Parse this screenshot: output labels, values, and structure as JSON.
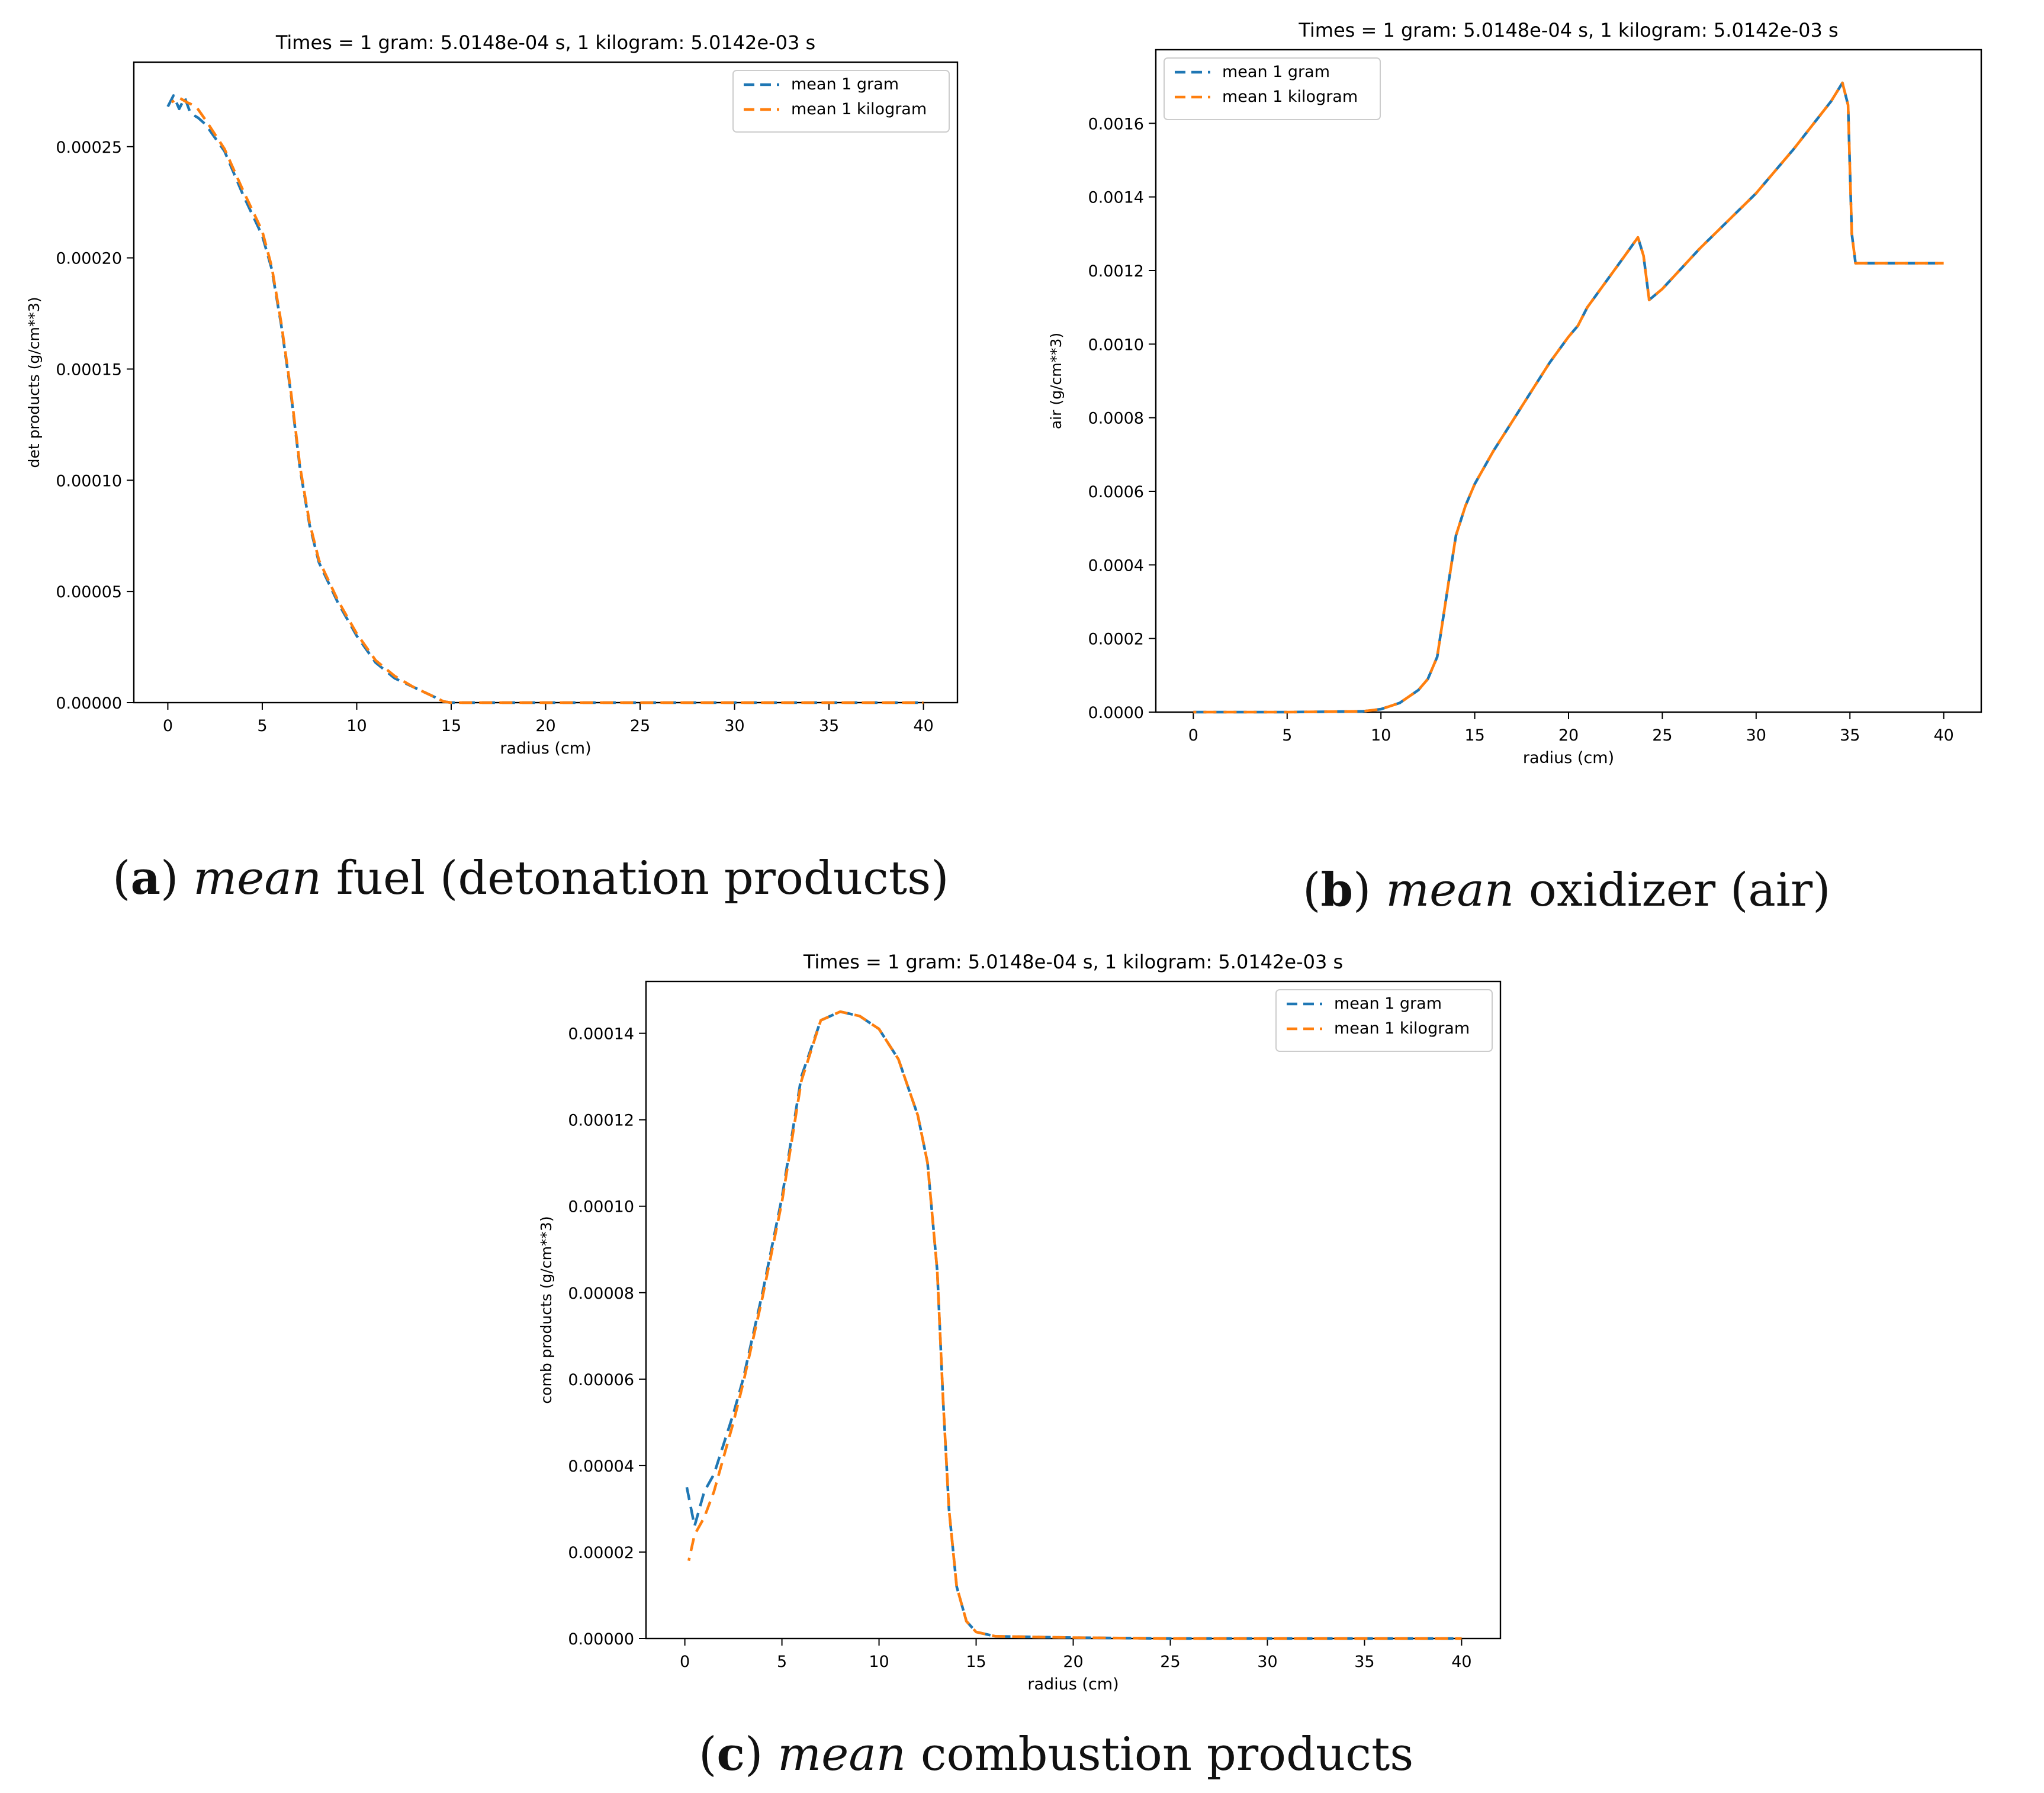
{
  "figure": {
    "captions": [
      {
        "letter": "a",
        "open": "(",
        "close": ")",
        "italic": "mean",
        "rest": " fuel (detonation products)"
      },
      {
        "letter": "b",
        "open": "(",
        "close": ")",
        "italic": "mean",
        "rest": " oxidizer (air)"
      },
      {
        "letter": "c",
        "open": "(",
        "close": ")",
        "italic": "mean",
        "rest": " combustion products"
      }
    ]
  },
  "colors": {
    "series_gram": "#1f77b4",
    "series_kilogram": "#ff7f0e",
    "axes": "#000000"
  },
  "chart_data": [
    {
      "type": "line",
      "title": "Times = 1 gram:   5.0148e-04 s,   1 kilogram:   5.0142e-03 s",
      "xlabel": "radius (cm)",
      "ylabel": "det products (g/cm**3)",
      "xlim": [
        -1.8,
        41.8
      ],
      "ylim": [
        0,
        0.000288
      ],
      "xticks": [
        0,
        5,
        10,
        15,
        20,
        25,
        30,
        35,
        40
      ],
      "xtick_labels": [
        "0",
        "5",
        "10",
        "15",
        "20",
        "25",
        "30",
        "35",
        "40"
      ],
      "yticks": [
        0,
        5e-05,
        0.0001,
        0.00015,
        0.0002,
        0.00025
      ],
      "ytick_labels": [
        "0.00000",
        "0.00005",
        "0.00010",
        "0.00015",
        "0.00020",
        "0.00025"
      ],
      "legend": "top-right",
      "grid": false,
      "series": [
        {
          "name": "mean 1 gram",
          "line": "dashed",
          "x": [
            0,
            0.3,
            0.6,
            0.9,
            1.2,
            1.6,
            2,
            3,
            4,
            5,
            5.5,
            6,
            6.5,
            7,
            7.5,
            8,
            9,
            10,
            11,
            12,
            13,
            14,
            14.6,
            15,
            20,
            25,
            30,
            35,
            40
          ],
          "y": [
            0.000268,
            0.000273,
            0.000267,
            0.000272,
            0.000265,
            0.000263,
            0.00026,
            0.000248,
            0.000228,
            0.00021,
            0.000195,
            0.00017,
            0.00014,
            0.000105,
            8e-05,
            6.3e-05,
            4.5e-05,
            3e-05,
            1.8e-05,
            1.1e-05,
            7e-06,
            3e-06,
            5e-07,
            0,
            0,
            0,
            0,
            0,
            0
          ]
        },
        {
          "name": "mean 1 kilogram",
          "line": "dashed",
          "x": [
            0.2,
            0.6,
            1,
            1.5,
            2,
            3,
            4,
            5,
            5.5,
            6,
            6.5,
            7,
            7.5,
            8,
            9,
            10,
            11,
            12,
            13,
            14,
            14.6,
            15,
            20,
            25,
            30,
            35,
            40
          ],
          "y": [
            0.00027,
            0.000272,
            0.00027,
            0.000268,
            0.000262,
            0.000249,
            0.00023,
            0.000212,
            0.000196,
            0.000171,
            0.000141,
            0.000106,
            8.1e-05,
            6.4e-05,
            4.6e-05,
            3.1e-05,
            1.9e-05,
            1.2e-05,
            7e-06,
            3e-06,
            5e-07,
            0,
            0,
            0,
            0,
            0,
            0
          ]
        }
      ]
    },
    {
      "type": "line",
      "title": "Times = 1 gram:   5.0148e-04 s,   1 kilogram:   5.0142e-03 s",
      "xlabel": "radius (cm)",
      "ylabel": "air (g/cm**3)",
      "xlim": [
        -2,
        42
      ],
      "ylim": [
        0,
        0.0018
      ],
      "xticks": [
        0,
        5,
        10,
        15,
        20,
        25,
        30,
        35,
        40
      ],
      "xtick_labels": [
        "0",
        "5",
        "10",
        "15",
        "20",
        "25",
        "30",
        "35",
        "40"
      ],
      "yticks": [
        0,
        0.0002,
        0.0004,
        0.0006,
        0.0008,
        0.001,
        0.0012,
        0.0014,
        0.0016
      ],
      "ytick_labels": [
        "0.0000",
        "0.0002",
        "0.0004",
        "0.0006",
        "0.0008",
        "0.0010",
        "0.0012",
        "0.0014",
        "0.0016"
      ],
      "legend": "top-left",
      "grid": false,
      "series": [
        {
          "name": "mean 1 gram",
          "line": "dashed",
          "x": [
            0,
            5,
            9,
            10,
            11,
            12,
            12.5,
            13,
            13.3,
            13.6,
            14,
            14.5,
            15,
            16,
            17,
            18,
            19,
            20,
            20.5,
            21,
            22,
            23,
            23.7,
            24,
            24.3,
            25,
            27,
            30,
            32,
            34,
            34.6,
            34.9,
            35.1,
            35.3,
            36,
            38,
            40
          ],
          "y": [
            0,
            0,
            2e-06,
            8e-06,
            2.5e-05,
            6e-05,
            9e-05,
            0.00015,
            0.00025,
            0.00035,
            0.00048,
            0.00056,
            0.00062,
            0.00071,
            0.00079,
            0.00087,
            0.00095,
            0.00102,
            0.00105,
            0.0011,
            0.00117,
            0.00124,
            0.00129,
            0.00124,
            0.00112,
            0.00115,
            0.00126,
            0.00141,
            0.00153,
            0.00166,
            0.00171,
            0.00165,
            0.0013,
            0.00122,
            0.00122,
            0.00122,
            0.00122
          ]
        },
        {
          "name": "mean 1 kilogram",
          "line": "dashed",
          "x": [
            0,
            5,
            9,
            10,
            11,
            12,
            12.5,
            13,
            13.3,
            13.6,
            14,
            14.5,
            15,
            16,
            17,
            18,
            19,
            20,
            20.5,
            21,
            22,
            23,
            23.7,
            24,
            24.3,
            25,
            27,
            30,
            32,
            34,
            34.6,
            34.9,
            35.1,
            35.3,
            36,
            38,
            40
          ],
          "y": [
            0,
            0,
            2e-06,
            8e-06,
            2.5e-05,
            6e-05,
            9e-05,
            0.00015,
            0.00025,
            0.00035,
            0.00048,
            0.00056,
            0.00062,
            0.00071,
            0.00079,
            0.00087,
            0.00095,
            0.00102,
            0.00105,
            0.0011,
            0.00117,
            0.00124,
            0.00129,
            0.00124,
            0.00112,
            0.00115,
            0.00126,
            0.00141,
            0.00153,
            0.00166,
            0.00171,
            0.00165,
            0.0013,
            0.00122,
            0.00122,
            0.00122,
            0.00122
          ]
        }
      ]
    },
    {
      "type": "line",
      "title": "Times = 1 gram:   5.0148e-04 s,   1 kilogram:   5.0142e-03 s",
      "xlabel": "radius (cm)",
      "ylabel": "comb products (g/cm**3)",
      "xlim": [
        -2,
        42
      ],
      "ylim": [
        0,
        0.000152
      ],
      "xticks": [
        0,
        5,
        10,
        15,
        20,
        25,
        30,
        35,
        40
      ],
      "xtick_labels": [
        "0",
        "5",
        "10",
        "15",
        "20",
        "25",
        "30",
        "35",
        "40"
      ],
      "yticks": [
        0,
        2e-05,
        4e-05,
        6e-05,
        8e-05,
        0.0001,
        0.00012,
        0.00014
      ],
      "ytick_labels": [
        "0.00000",
        "0.00002",
        "0.00004",
        "0.00006",
        "0.00008",
        "0.00010",
        "0.00012",
        "0.00014"
      ],
      "legend": "top-right",
      "grid": false,
      "series": [
        {
          "name": "mean 1 gram",
          "line": "dashed",
          "x": [
            0.1,
            0.5,
            1,
            1.5,
            2,
            2.5,
            3,
            4,
            5,
            6,
            7,
            8,
            9,
            10,
            11,
            12,
            12.5,
            13,
            13.3,
            13.6,
            14,
            14.5,
            15,
            16,
            20,
            25,
            30,
            35,
            40
          ],
          "y": [
            3.5e-05,
            2.6e-05,
            3.4e-05,
            3.8e-05,
            4.5e-05,
            5.2e-05,
            6e-05,
            8e-05,
            0.000102,
            0.00013,
            0.000143,
            0.000145,
            0.000144,
            0.000141,
            0.000134,
            0.000121,
            0.00011,
            8.5e-05,
            5.5e-05,
            3e-05,
            1.2e-05,
            4e-06,
            1.5e-06,
            5e-07,
            2e-07,
            0,
            0,
            0,
            0
          ]
        },
        {
          "name": "mean 1 kilogram",
          "line": "dashed",
          "x": [
            0.2,
            0.5,
            1,
            1.5,
            2,
            2.5,
            3,
            4,
            5,
            6,
            7,
            8,
            9,
            10,
            11,
            12,
            12.5,
            13,
            13.3,
            13.6,
            14,
            14.5,
            15,
            16,
            20,
            25,
            30,
            35,
            40
          ],
          "y": [
            1.8e-05,
            2.4e-05,
            2.8e-05,
            3.4e-05,
            4.2e-05,
            5e-05,
            5.9e-05,
            7.9e-05,
            0.000101,
            0.000129,
            0.000143,
            0.000145,
            0.000144,
            0.000141,
            0.000134,
            0.000121,
            0.00011,
            8.5e-05,
            5.5e-05,
            3e-05,
            1.2e-05,
            4e-06,
            1.5e-06,
            5e-07,
            2e-07,
            0,
            0,
            0,
            0
          ]
        }
      ]
    }
  ]
}
